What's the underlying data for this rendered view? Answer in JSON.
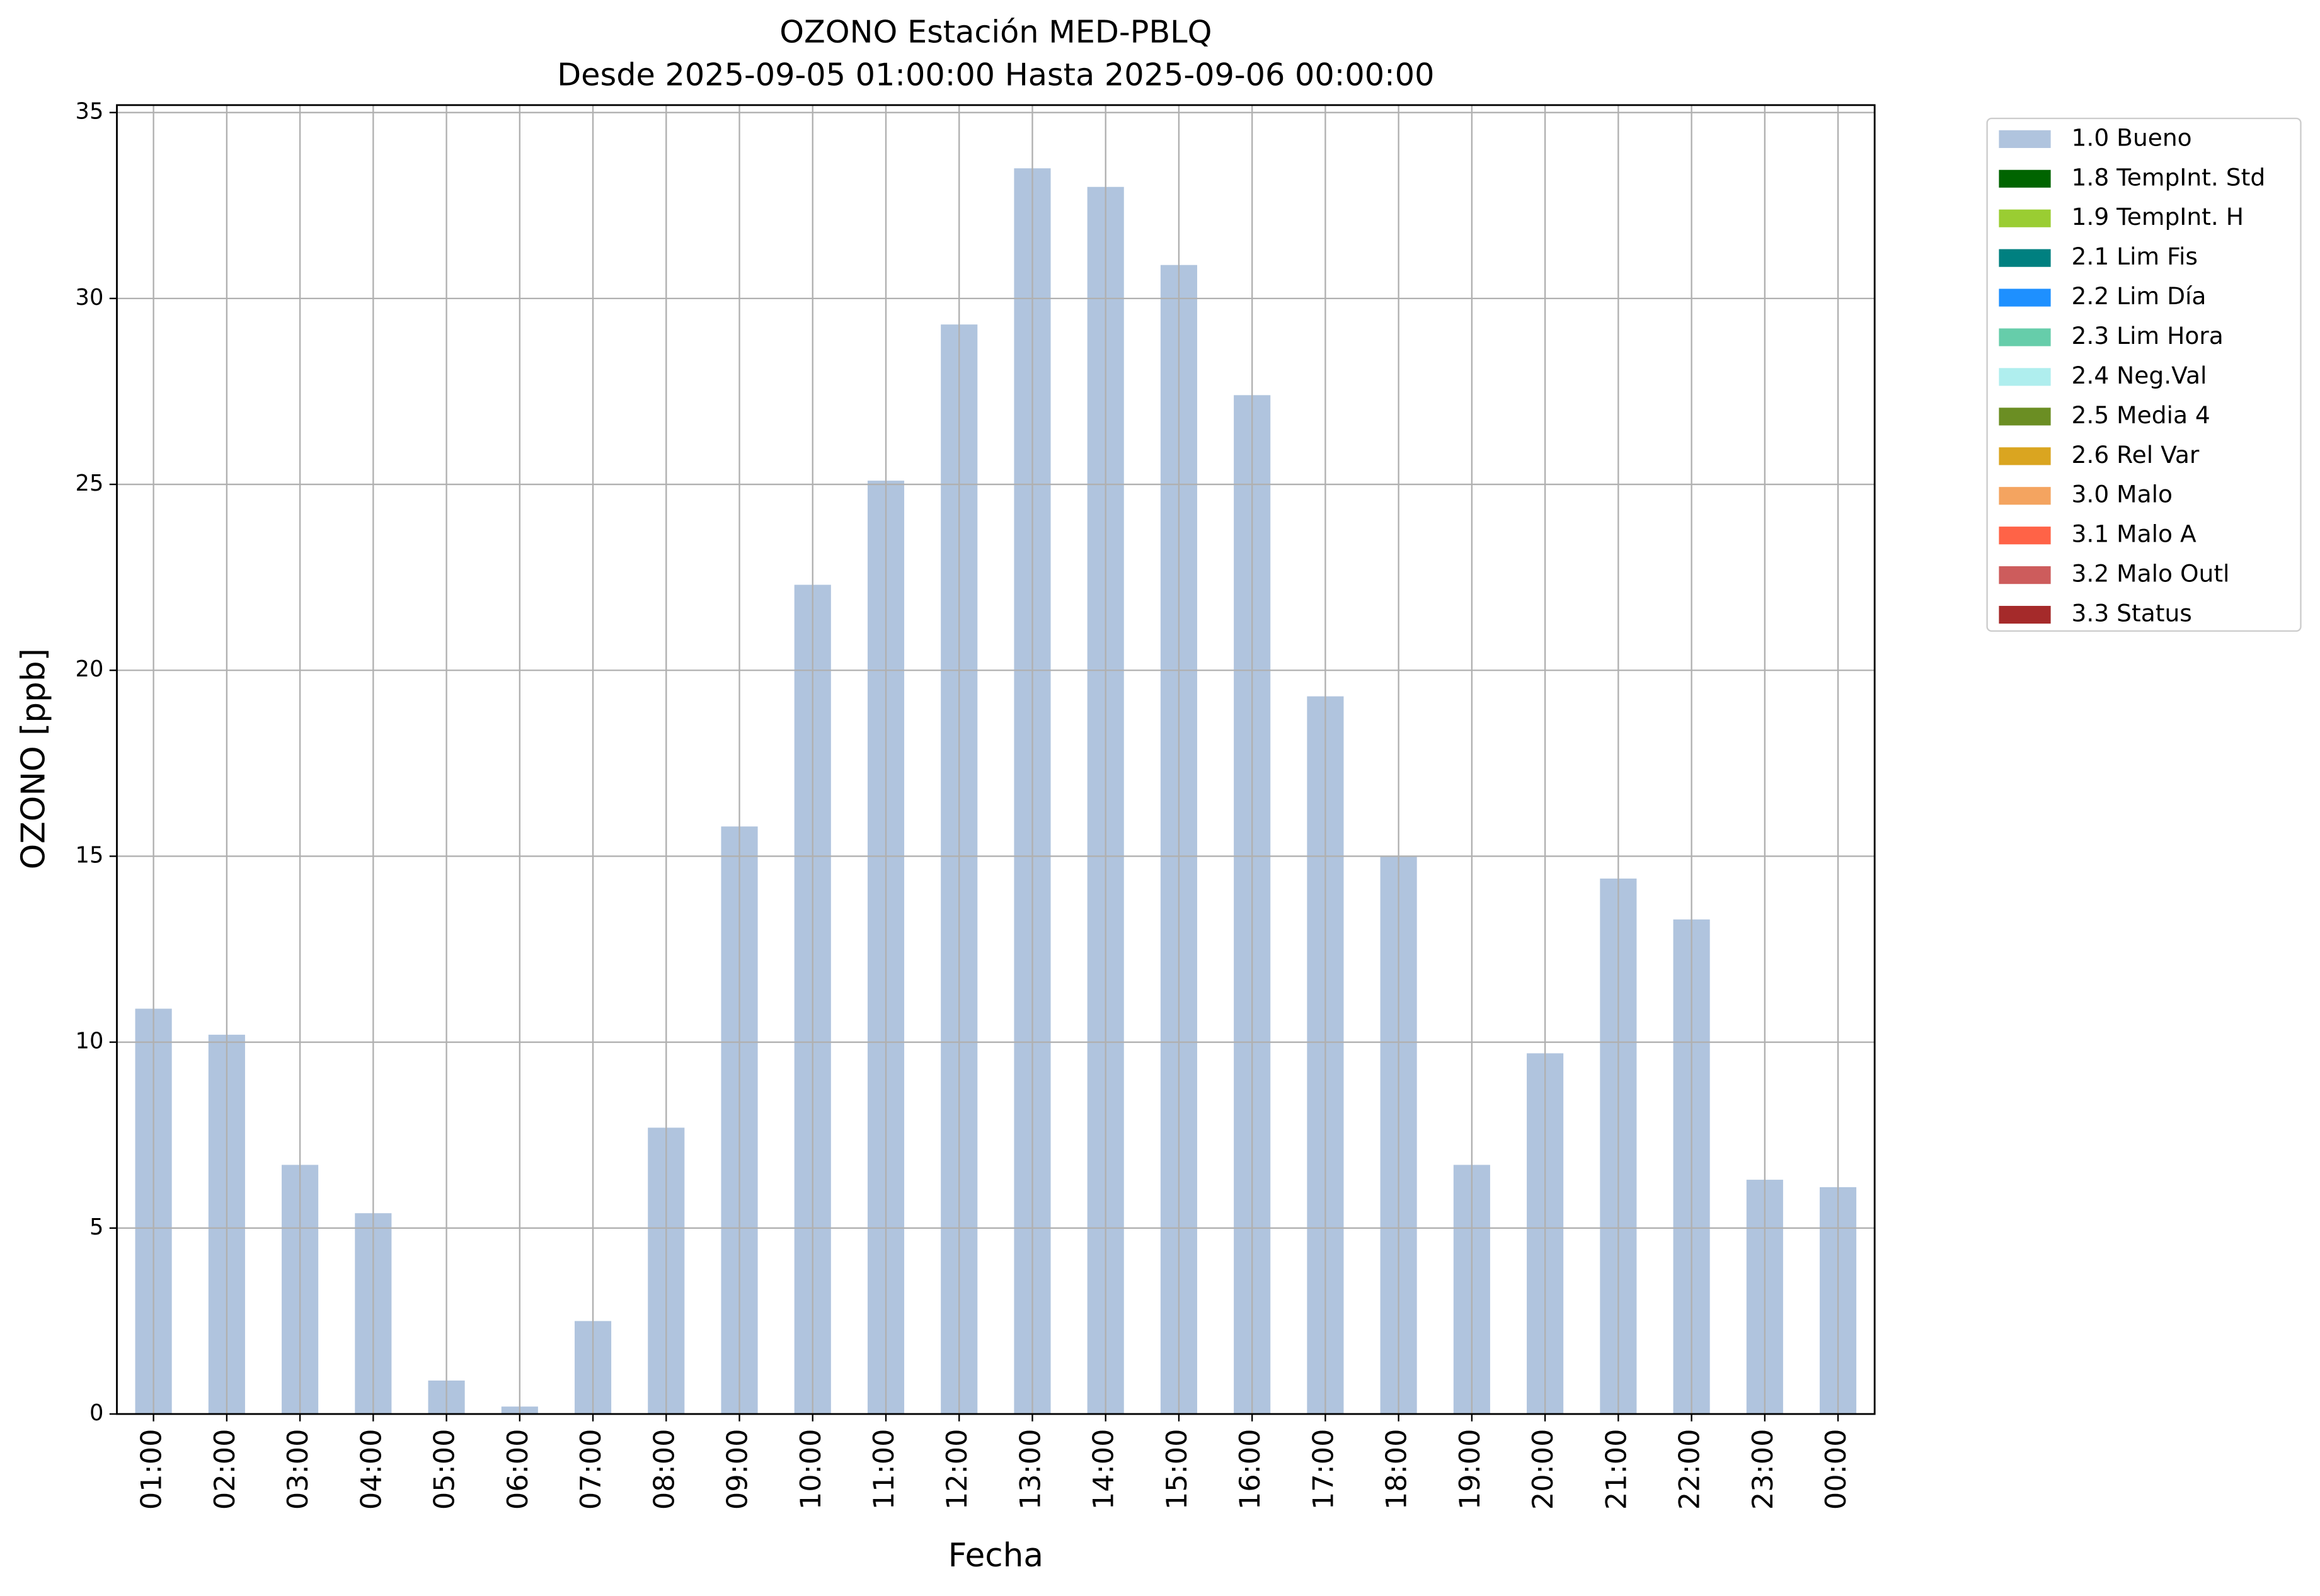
{
  "chart_data": {
    "type": "bar",
    "title": "OZONO Estación MED-PBLQ",
    "subtitle": "Desde 2025-09-05 01:00:00 Hasta 2025-09-06 00:00:00",
    "x_label": "Fecha",
    "y_label": "OZONO [ppb]",
    "categories": [
      "01:00",
      "02:00",
      "03:00",
      "04:00",
      "05:00",
      "06:00",
      "07:00",
      "08:00",
      "09:00",
      "10:00",
      "11:00",
      "12:00",
      "13:00",
      "14:00",
      "15:00",
      "16:00",
      "17:00",
      "18:00",
      "19:00",
      "20:00",
      "21:00",
      "22:00",
      "23:00",
      "00:00"
    ],
    "series": [
      {
        "name": "1.0 Bueno",
        "color": "#b0c4de",
        "values": [
          10.9,
          10.2,
          6.7,
          5.4,
          0.9,
          0.2,
          2.5,
          7.7,
          15.8,
          22.3,
          25.1,
          29.3,
          33.5,
          33.0,
          30.9,
          27.4,
          19.3,
          15.0,
          6.7,
          9.7,
          14.4,
          13.3,
          6.3,
          6.1
        ]
      }
    ],
    "legend_entries": [
      {
        "name": "1.0 Bueno",
        "color": "#b0c4de"
      },
      {
        "name": "1.8 TempInt. Std",
        "color": "#006400"
      },
      {
        "name": "1.9 TempInt. H",
        "color": "#9acd32"
      },
      {
        "name": "2.1 Lim Fis",
        "color": "#008080"
      },
      {
        "name": "2.2 Lim Día",
        "color": "#1e90ff"
      },
      {
        "name": "2.3 Lim Hora",
        "color": "#66cdaa"
      },
      {
        "name": "2.4 Neg.Val",
        "color": "#afeeee"
      },
      {
        "name": "2.5 Media 4",
        "color": "#6b8e23"
      },
      {
        "name": "2.6 Rel Var",
        "color": "#daa520"
      },
      {
        "name": "3.0 Malo",
        "color": "#f4a460"
      },
      {
        "name": "3.1 Malo A",
        "color": "#ff6347"
      },
      {
        "name": "3.2 Malo Outl",
        "color": "#cd5c5c"
      },
      {
        "name": "3.3 Status",
        "color": "#a52a2a"
      }
    ],
    "legend_position": "outside upper right",
    "ylim": [
      0,
      35.2
    ],
    "yticks": [
      0,
      5,
      10,
      15,
      20,
      25,
      30,
      35
    ],
    "grid": true
  }
}
